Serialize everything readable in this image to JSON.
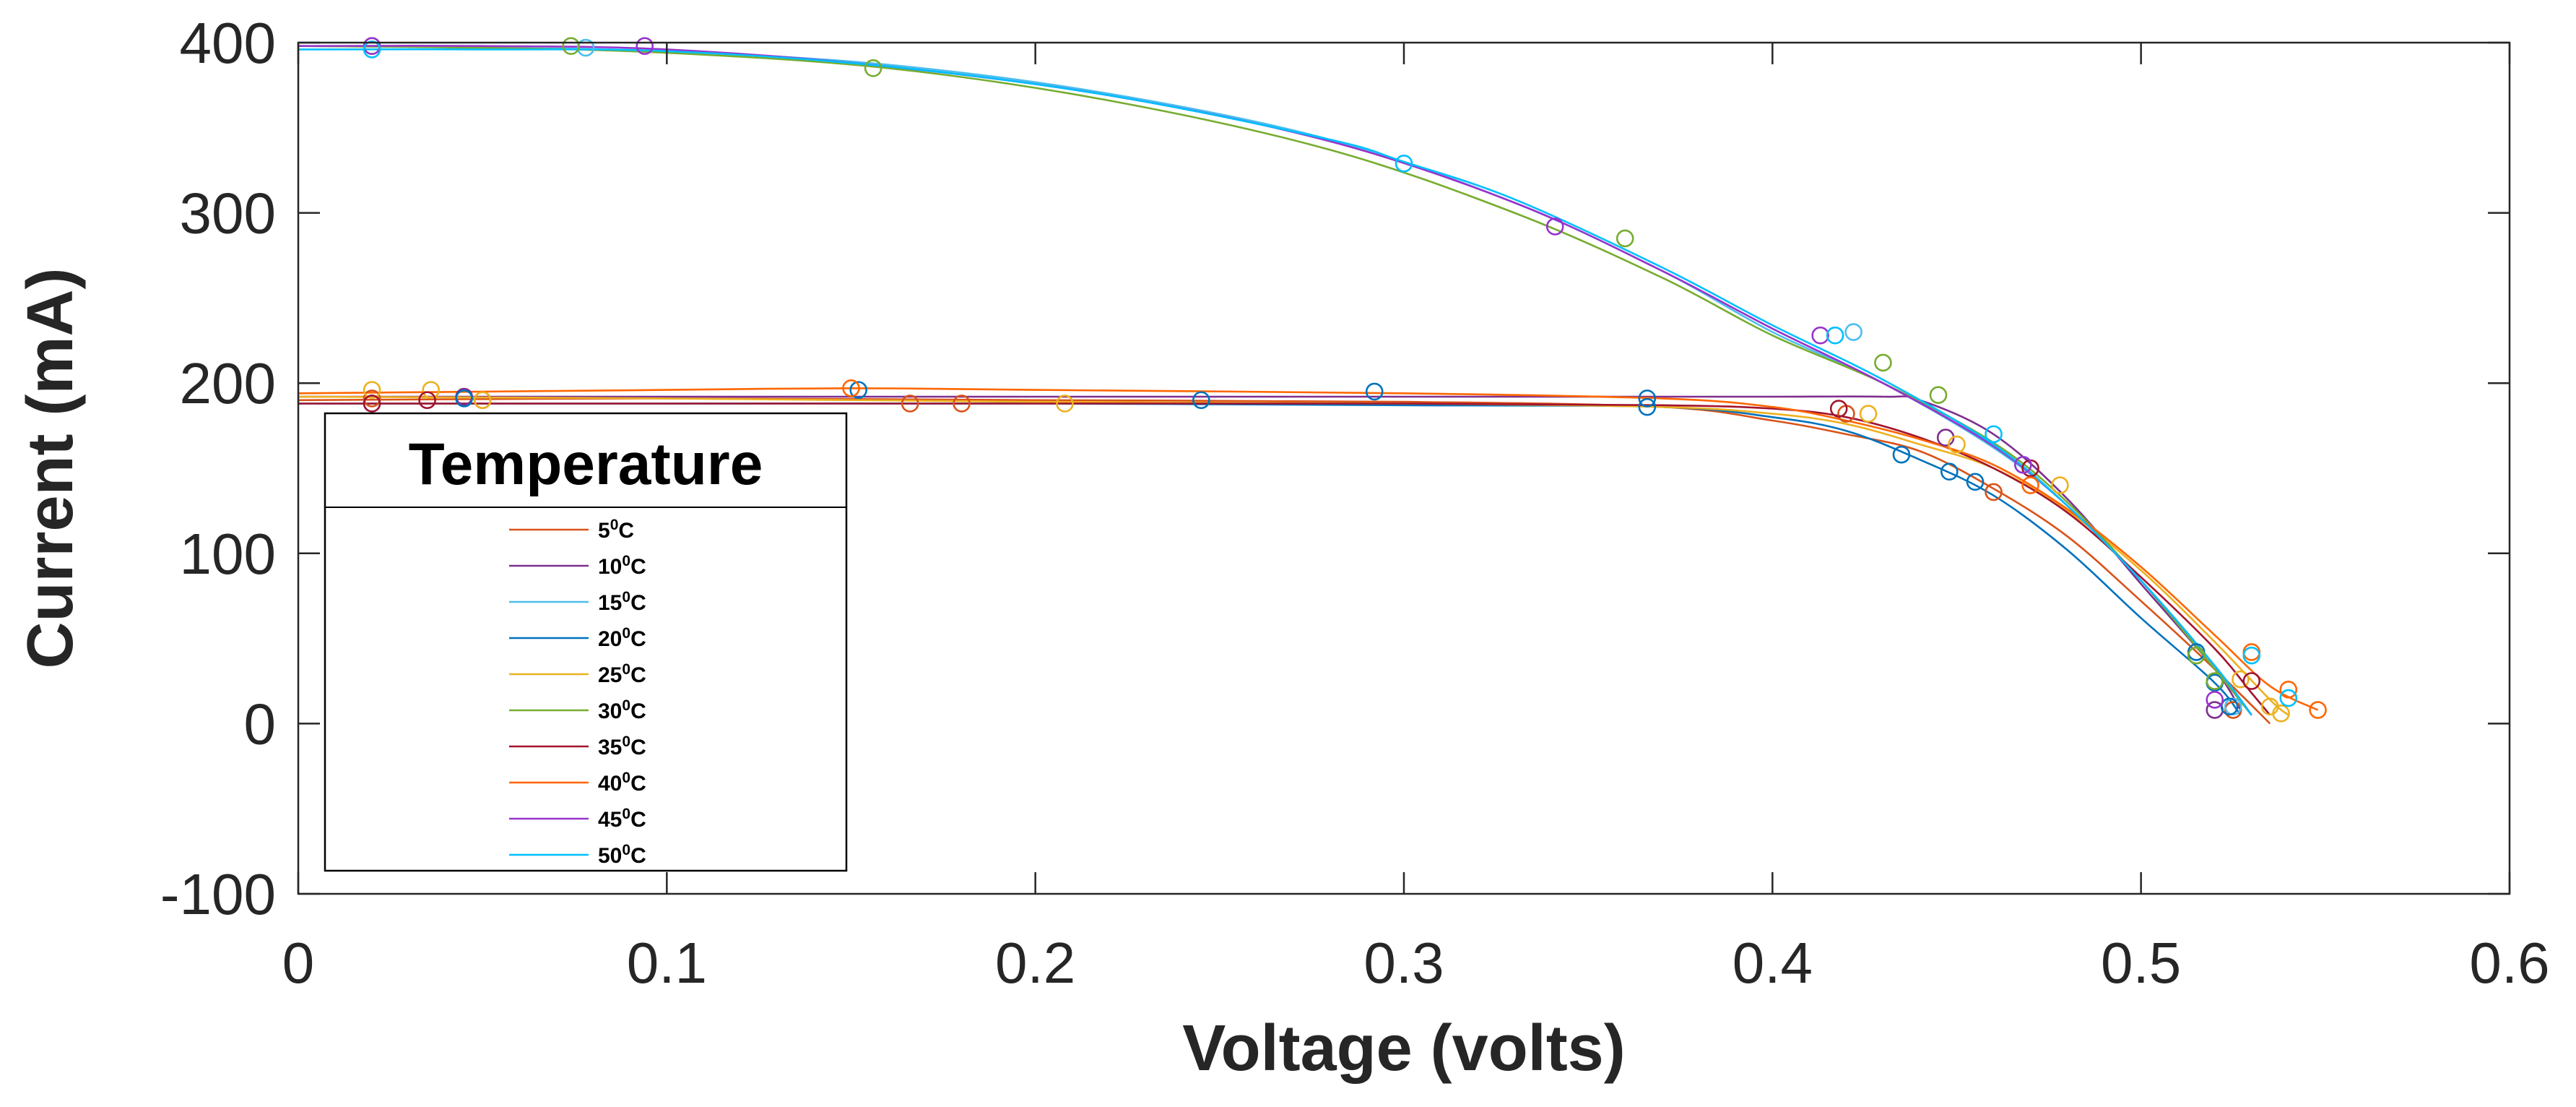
{
  "chart_data": {
    "type": "line",
    "title": "",
    "xlabel": "Voltage (volts)",
    "ylabel": "Current (mA)",
    "xlim": [
      0,
      0.6
    ],
    "ylim": [
      -100,
      400
    ],
    "xticks": [
      0,
      0.1,
      0.2,
      0.3,
      0.4,
      0.5,
      0.6
    ],
    "xtick_labels": [
      "0",
      "0.1",
      "0.2",
      "0.3",
      "0.4",
      "0.5",
      "0.6"
    ],
    "yticks": [
      -100,
      0,
      100,
      200,
      300,
      400
    ],
    "ytick_labels": [
      "-100",
      "0",
      "100",
      "200",
      "300",
      "400"
    ],
    "grid": false,
    "legend": {
      "title": "Temperature",
      "placement": "lower-left"
    },
    "series": [
      {
        "name": "5",
        "unit": "C",
        "color": "#D95319",
        "curve": [
          [
            0,
            190
          ],
          [
            0.1,
            191
          ],
          [
            0.2,
            190
          ],
          [
            0.3,
            189
          ],
          [
            0.37,
            186
          ],
          [
            0.4,
            178
          ],
          [
            0.42,
            170
          ],
          [
            0.44,
            160
          ],
          [
            0.46,
            138
          ],
          [
            0.48,
            110
          ],
          [
            0.5,
            72
          ],
          [
            0.52,
            32
          ],
          [
            0.535,
            0
          ]
        ],
        "markers": [
          [
            0.02,
            191
          ],
          [
            0.05,
            190
          ],
          [
            0.166,
            188
          ],
          [
            0.18,
            188
          ],
          [
            0.42,
            182
          ],
          [
            0.46,
            136
          ],
          [
            0.525,
            8
          ]
        ]
      },
      {
        "name": "10",
        "unit": "C",
        "color": "#7E2F8E",
        "curve": [
          [
            0,
            192
          ],
          [
            0.1,
            192
          ],
          [
            0.2,
            192
          ],
          [
            0.3,
            192
          ],
          [
            0.37,
            192
          ],
          [
            0.4,
            192
          ],
          [
            0.43,
            192
          ],
          [
            0.44,
            190
          ],
          [
            0.46,
            170
          ],
          [
            0.48,
            132
          ],
          [
            0.5,
            82
          ],
          [
            0.52,
            32
          ],
          [
            0.527,
            8
          ]
        ],
        "markers": [
          [
            0.045,
            192
          ],
          [
            0.447,
            168
          ],
          [
            0.52,
            8
          ]
        ]
      },
      {
        "name": "15",
        "unit": "C",
        "color": "#4DBEEE",
        "curve": [
          [
            0,
            398
          ],
          [
            0.05,
            397
          ],
          [
            0.1,
            395
          ],
          [
            0.16,
            387
          ],
          [
            0.22,
            370
          ],
          [
            0.28,
            343
          ],
          [
            0.33,
            306
          ],
          [
            0.37,
            266
          ],
          [
            0.4,
            230
          ],
          [
            0.43,
            200
          ],
          [
            0.46,
            162
          ],
          [
            0.48,
            128
          ],
          [
            0.5,
            84
          ],
          [
            0.52,
            34
          ],
          [
            0.53,
            5
          ]
        ],
        "markers": [
          [
            0.078,
            397
          ],
          [
            0.422,
            230
          ],
          [
            0.468,
            152
          ],
          [
            0.525,
            10
          ]
        ]
      },
      {
        "name": "20",
        "unit": "C",
        "color": "#0072BD",
        "curve": [
          [
            0,
            188
          ],
          [
            0.1,
            188
          ],
          [
            0.2,
            188
          ],
          [
            0.3,
            187
          ],
          [
            0.37,
            186
          ],
          [
            0.4,
            180
          ],
          [
            0.42,
            172
          ],
          [
            0.44,
            155
          ],
          [
            0.46,
            134
          ],
          [
            0.48,
            102
          ],
          [
            0.5,
            62
          ],
          [
            0.52,
            24
          ],
          [
            0.527,
            5
          ]
        ],
        "markers": [
          [
            0.02,
            188
          ],
          [
            0.045,
            191
          ],
          [
            0.152,
            196
          ],
          [
            0.245,
            190
          ],
          [
            0.292,
            195
          ],
          [
            0.366,
            186
          ],
          [
            0.366,
            191
          ],
          [
            0.435,
            158
          ],
          [
            0.448,
            148
          ],
          [
            0.455,
            142
          ],
          [
            0.515,
            42
          ],
          [
            0.52,
            24
          ],
          [
            0.524,
            10
          ]
        ]
      },
      {
        "name": "25",
        "unit": "C",
        "color": "#EDB120",
        "curve": [
          [
            0,
            192
          ],
          [
            0.1,
            191
          ],
          [
            0.2,
            189
          ],
          [
            0.3,
            188
          ],
          [
            0.37,
            186
          ],
          [
            0.4,
            182
          ],
          [
            0.42,
            176
          ],
          [
            0.44,
            164
          ],
          [
            0.46,
            150
          ],
          [
            0.48,
            125
          ],
          [
            0.5,
            90
          ],
          [
            0.52,
            48
          ],
          [
            0.535,
            14
          ],
          [
            0.54,
            5
          ]
        ],
        "markers": [
          [
            0.02,
            196
          ],
          [
            0.036,
            196
          ],
          [
            0.05,
            190
          ],
          [
            0.208,
            188
          ],
          [
            0.426,
            182
          ],
          [
            0.45,
            164
          ],
          [
            0.478,
            140
          ],
          [
            0.527,
            26
          ],
          [
            0.535,
            10
          ],
          [
            0.538,
            6
          ]
        ]
      },
      {
        "name": "30",
        "unit": "C",
        "color": "#77AC30",
        "curve": [
          [
            0,
            398
          ],
          [
            0.05,
            397
          ],
          [
            0.1,
            394
          ],
          [
            0.16,
            385
          ],
          [
            0.22,
            366
          ],
          [
            0.28,
            337
          ],
          [
            0.33,
            300
          ],
          [
            0.37,
            262
          ],
          [
            0.4,
            228
          ],
          [
            0.43,
            200
          ],
          [
            0.46,
            165
          ],
          [
            0.48,
            130
          ],
          [
            0.5,
            84
          ],
          [
            0.52,
            32
          ],
          [
            0.53,
            5
          ]
        ],
        "markers": [
          [
            0.02,
            398
          ],
          [
            0.074,
            398
          ],
          [
            0.156,
            385
          ],
          [
            0.36,
            285
          ],
          [
            0.43,
            212
          ],
          [
            0.445,
            193
          ],
          [
            0.515,
            40
          ],
          [
            0.52,
            25
          ]
        ]
      },
      {
        "name": "35",
        "unit": "C",
        "color": "#A2142F",
        "curve": [
          [
            0,
            188
          ],
          [
            0.1,
            188
          ],
          [
            0.2,
            188
          ],
          [
            0.3,
            188
          ],
          [
            0.37,
            187
          ],
          [
            0.4,
            185
          ],
          [
            0.42,
            180
          ],
          [
            0.44,
            168
          ],
          [
            0.46,
            150
          ],
          [
            0.48,
            124
          ],
          [
            0.5,
            86
          ],
          [
            0.52,
            44
          ],
          [
            0.53,
            18
          ],
          [
            0.535,
            5
          ]
        ],
        "markers": [
          [
            0.02,
            188
          ],
          [
            0.035,
            190
          ],
          [
            0.418,
            185
          ],
          [
            0.47,
            150
          ],
          [
            0.53,
            25
          ]
        ]
      },
      {
        "name": "40",
        "unit": "C",
        "color": "#FF6600",
        "curve": [
          [
            0,
            194
          ],
          [
            0.05,
            195
          ],
          [
            0.1,
            196
          ],
          [
            0.15,
            197
          ],
          [
            0.2,
            196
          ],
          [
            0.3,
            194
          ],
          [
            0.37,
            191
          ],
          [
            0.4,
            186
          ],
          [
            0.42,
            178
          ],
          [
            0.44,
            167
          ],
          [
            0.46,
            152
          ],
          [
            0.48,
            126
          ],
          [
            0.5,
            92
          ],
          [
            0.52,
            52
          ],
          [
            0.535,
            22
          ],
          [
            0.548,
            8
          ]
        ],
        "markers": [
          [
            0.15,
            197
          ],
          [
            0.47,
            140
          ],
          [
            0.53,
            42
          ],
          [
            0.54,
            20
          ],
          [
            0.548,
            8
          ]
        ]
      },
      {
        "name": "45",
        "unit": "C",
        "color": "#9933CC",
        "curve": [
          [
            0,
            398
          ],
          [
            0.05,
            398
          ],
          [
            0.1,
            396
          ],
          [
            0.16,
            386
          ],
          [
            0.22,
            369
          ],
          [
            0.28,
            342
          ],
          [
            0.33,
            306
          ],
          [
            0.37,
            266
          ],
          [
            0.4,
            232
          ],
          [
            0.43,
            200
          ],
          [
            0.46,
            163
          ],
          [
            0.48,
            128
          ],
          [
            0.5,
            84
          ],
          [
            0.52,
            34
          ],
          [
            0.53,
            5
          ]
        ],
        "markers": [
          [
            0.02,
            398
          ],
          [
            0.094,
            398
          ],
          [
            0.341,
            292
          ],
          [
            0.413,
            228
          ],
          [
            0.468,
            152
          ],
          [
            0.52,
            14
          ]
        ]
      },
      {
        "name": "50",
        "unit": "C",
        "color": "#00BFFF",
        "curve": [
          [
            0,
            396
          ],
          [
            0.05,
            396
          ],
          [
            0.1,
            395
          ],
          [
            0.16,
            386
          ],
          [
            0.22,
            369
          ],
          [
            0.28,
            343
          ],
          [
            0.3,
            330
          ],
          [
            0.33,
            308
          ],
          [
            0.37,
            268
          ],
          [
            0.4,
            234
          ],
          [
            0.43,
            202
          ],
          [
            0.46,
            164
          ],
          [
            0.48,
            128
          ],
          [
            0.5,
            84
          ],
          [
            0.52,
            34
          ],
          [
            0.53,
            5
          ]
        ],
        "markers": [
          [
            0.02,
            396
          ],
          [
            0.3,
            329
          ],
          [
            0.417,
            228
          ],
          [
            0.46,
            170
          ],
          [
            0.53,
            40
          ],
          [
            0.54,
            15
          ]
        ]
      }
    ]
  }
}
